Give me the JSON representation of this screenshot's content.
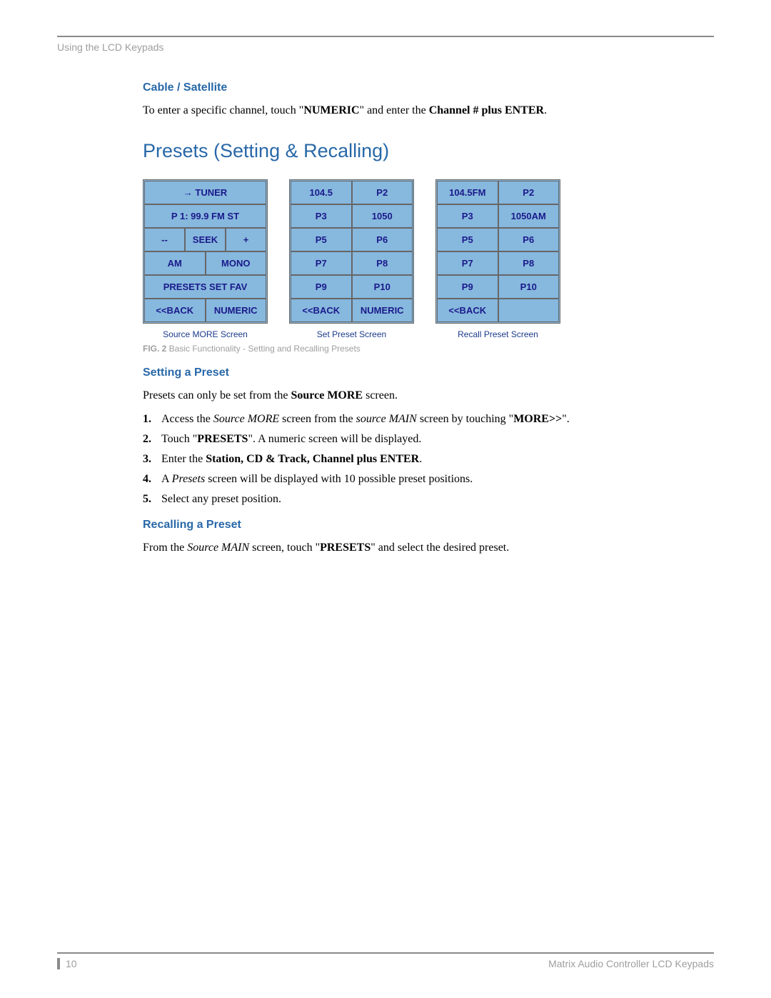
{
  "header": {
    "breadcrumb": "Using the LCD Keypads"
  },
  "cable": {
    "title": "Cable / Satellite",
    "text_parts": [
      "To enter a specific channel, touch \"",
      "NUMERIC",
      "\" and enter the ",
      "Channel # plus ENTER",
      "."
    ]
  },
  "presets": {
    "title": "Presets (Setting & Recalling)",
    "screens": [
      {
        "caption": "Source MORE Screen",
        "rows": [
          [
            "→     TUNER"
          ],
          [
            "P 1:  99.9 FM    ST"
          ],
          [
            "--",
            "SEEK",
            "+"
          ],
          [
            "AM",
            "MONO"
          ],
          [
            "PRESETS SET FAV"
          ],
          [
            "<<BACK",
            "NUMERIC"
          ]
        ]
      },
      {
        "caption": "Set Preset Screen",
        "rows": [
          [
            "104.5",
            "P2"
          ],
          [
            "P3",
            "1050"
          ],
          [
            "P5",
            "P6"
          ],
          [
            "P7",
            "P8"
          ],
          [
            "P9",
            "P10"
          ],
          [
            "<<BACK",
            "NUMERIC"
          ]
        ]
      },
      {
        "caption": "Recall Preset Screen",
        "rows": [
          [
            "104.5FM",
            "P2"
          ],
          [
            "P3",
            "1050AM"
          ],
          [
            "P5",
            "P6"
          ],
          [
            "P7",
            "P8"
          ],
          [
            "P9",
            "P10"
          ],
          [
            "<<BACK",
            ""
          ]
        ]
      }
    ],
    "fig_label": "FIG. 2",
    "fig_text": "  Basic Functionality - Setting and Recalling Presets"
  },
  "setting": {
    "title": "Setting a Preset",
    "intro_parts": [
      "Presets can only be set from the ",
      "Source MORE",
      " screen."
    ],
    "steps": [
      [
        {
          "t": "Access the "
        },
        {
          "i": "Source MORE"
        },
        {
          "t": " screen from the "
        },
        {
          "i": "source MAIN"
        },
        {
          "t": " screen by touching \""
        },
        {
          "b": "MORE>>"
        },
        {
          "t": "\"."
        }
      ],
      [
        {
          "t": "Touch \""
        },
        {
          "b": "PRESETS"
        },
        {
          "t": "\". A numeric screen will be displayed."
        }
      ],
      [
        {
          "t": "Enter the "
        },
        {
          "b": "Station, CD & Track, Channel plus ENTER"
        },
        {
          "t": "."
        }
      ],
      [
        {
          "t": "A "
        },
        {
          "i": "Presets"
        },
        {
          "t": " screen will be displayed with 10 possible preset positions."
        }
      ],
      [
        {
          "t": "Select any preset position."
        }
      ]
    ]
  },
  "recalling": {
    "title": "Recalling a Preset",
    "text_parts": [
      "From the ",
      {
        "i": "Source MAIN"
      },
      " screen, touch \"",
      {
        "b": "PRESETS"
      },
      "\" and select the desired preset."
    ]
  },
  "footer": {
    "page": "10",
    "right": "Matrix Audio Controller LCD Keypads"
  },
  "styling": {
    "lcd_bg": "#87b8de",
    "lcd_text_color": "#1a1a8a",
    "heading_color": "#2868a8",
    "muted_color": "#9e9e9e",
    "rule_color": "#8a8a8a",
    "caption_color": "#1a3a8a",
    "page_bg": "#ffffff",
    "lcd_cell_fontsize": 13,
    "body_fontsize": 16,
    "section_large_fontsize": 27,
    "section_small_fontsize": 16
  }
}
